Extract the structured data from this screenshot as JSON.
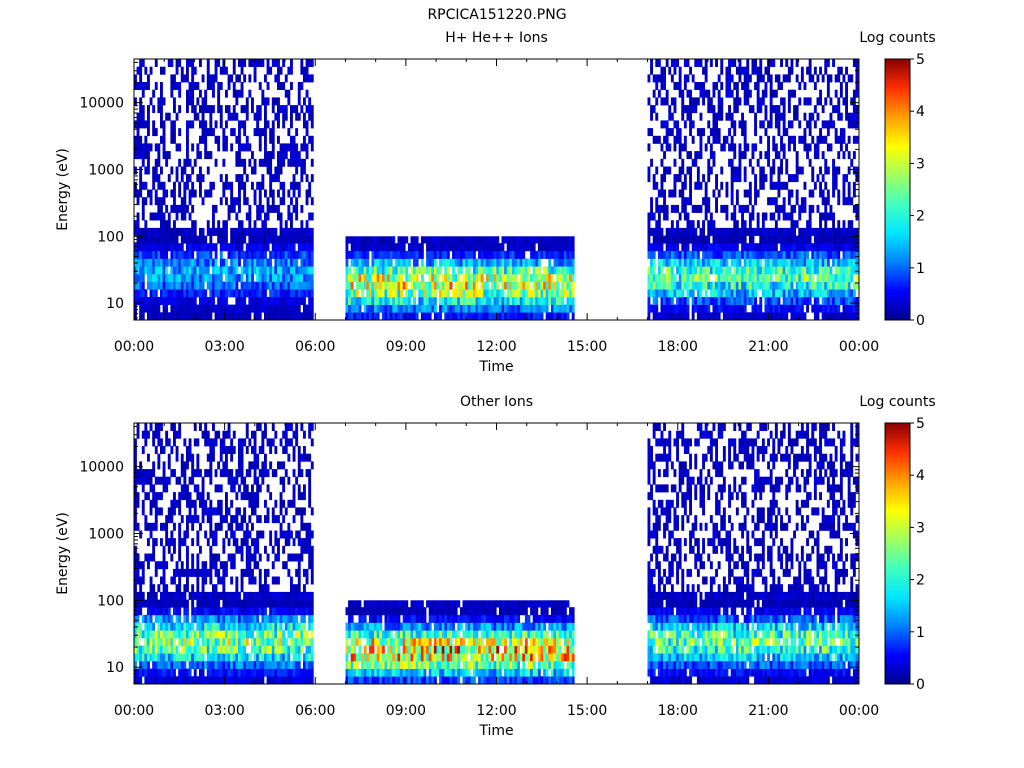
{
  "figure_title": "RPCICA151220.PNG",
  "colors": {
    "colormap": [
      "#00008c",
      "#0000ff",
      "#0080ff",
      "#00e6ff",
      "#40ffc0",
      "#a0ff60",
      "#ffff00",
      "#ffa000",
      "#ff3000",
      "#8c0000"
    ]
  },
  "chart_data": [
    {
      "type": "heatmap",
      "title": "H+ He++ Ions",
      "xlabel": "Time",
      "ylabel": "Energy (eV)",
      "x_ticks": [
        "00:00",
        "03:00",
        "06:00",
        "09:00",
        "12:00",
        "15:00",
        "18:00",
        "21:00",
        "00:00"
      ],
      "x_range_hours": [
        0,
        24
      ],
      "y_scale": "log",
      "y_ticks": [
        10,
        100,
        1000,
        10000
      ],
      "y_tick_labels": [
        "10",
        "100",
        "1000",
        "10000"
      ],
      "y_range": [
        5.6,
        45000
      ],
      "colorbar": {
        "label": "Log counts",
        "range": [
          0,
          5
        ],
        "ticks": [
          "0",
          "1",
          "2",
          "3",
          "4",
          "5"
        ]
      },
      "data_segments": [
        {
          "start_hours": 0.0,
          "end_hours": 5.9,
          "energy_max": 45000,
          "peak_energy": 30,
          "peak_level": 1.3
        },
        {
          "start_hours": 7.0,
          "end_hours": 14.5,
          "energy_max": 100,
          "peak_energy": 20,
          "peak_level": 3.0
        },
        {
          "start_hours": 17.0,
          "end_hours": 23.9,
          "energy_max": 45000,
          "peak_energy": 25,
          "peak_level": 2.2
        }
      ]
    },
    {
      "type": "heatmap",
      "title": "Other Ions",
      "xlabel": "Time",
      "ylabel": "Energy (eV)",
      "x_ticks": [
        "00:00",
        "03:00",
        "06:00",
        "09:00",
        "12:00",
        "15:00",
        "18:00",
        "21:00",
        "00:00"
      ],
      "x_range_hours": [
        0,
        24
      ],
      "y_scale": "log",
      "y_ticks": [
        10,
        100,
        1000,
        10000
      ],
      "y_tick_labels": [
        "10",
        "100",
        "1000",
        "10000"
      ],
      "y_range": [
        5.6,
        45000
      ],
      "colorbar": {
        "label": "Log counts",
        "range": [
          0,
          5
        ],
        "ticks": [
          "0",
          "1",
          "2",
          "3",
          "4",
          "5"
        ]
      },
      "data_segments": [
        {
          "start_hours": 0.0,
          "end_hours": 5.9,
          "energy_max": 45000,
          "peak_energy": 25,
          "peak_level": 2.6
        },
        {
          "start_hours": 7.0,
          "end_hours": 14.5,
          "energy_max": 100,
          "peak_energy": 18,
          "peak_level": 3.4
        },
        {
          "start_hours": 17.0,
          "end_hours": 23.9,
          "energy_max": 45000,
          "peak_energy": 25,
          "peak_level": 2.3
        }
      ]
    }
  ]
}
